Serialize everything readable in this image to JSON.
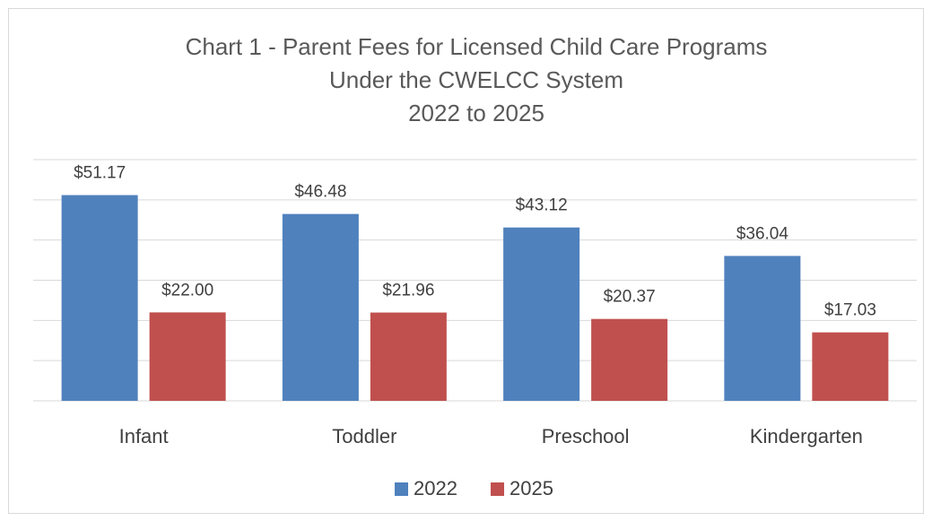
{
  "chart_data": {
    "type": "bar",
    "title_lines": [
      "Chart 1 - Parent Fees for Licensed Child Care Programs",
      "Under the CWELCC System",
      "2022 to 2025"
    ],
    "categories": [
      "Infant",
      "Toddler",
      "Preschool",
      "Kindergarten"
    ],
    "series": [
      {
        "name": "2022",
        "color": "#4f81bd",
        "values": [
          51.17,
          46.48,
          43.12,
          36.04
        ],
        "value_labels": [
          "$51.17",
          "$46.48",
          "$43.12",
          "$36.04"
        ]
      },
      {
        "name": "2025",
        "color": "#c0504d",
        "values": [
          22.0,
          21.96,
          20.37,
          17.03
        ],
        "value_labels": [
          "$22.00",
          "$21.96",
          "$20.37",
          "$17.03"
        ]
      }
    ],
    "ylim": [
      0,
      60
    ],
    "yticks": [
      0,
      10,
      20,
      30,
      40,
      50,
      60
    ],
    "grid": true,
    "legend": "bottom"
  }
}
